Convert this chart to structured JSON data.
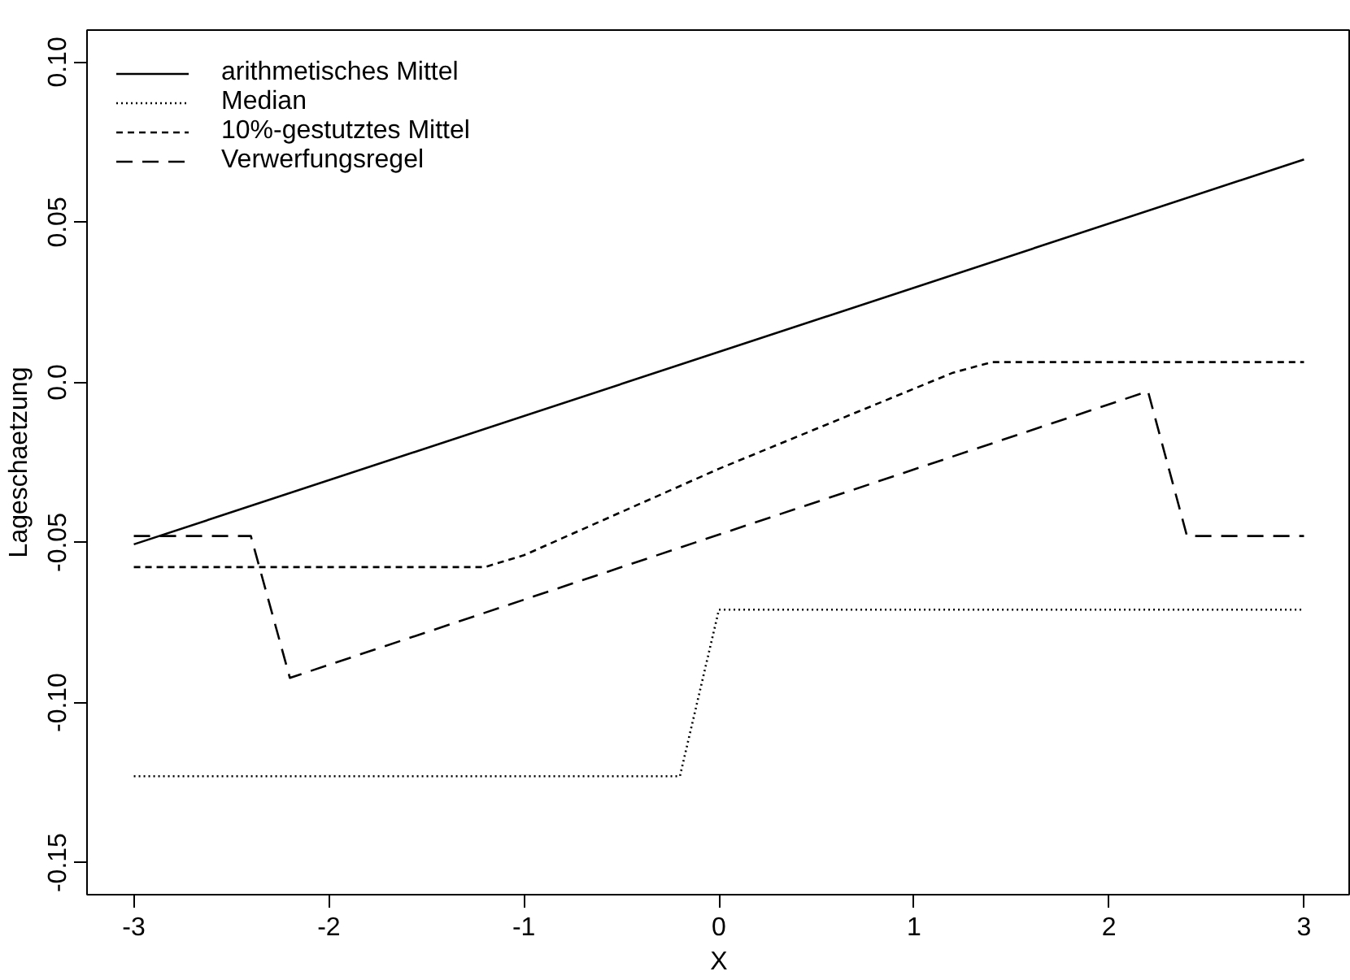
{
  "chart_data": {
    "type": "line",
    "xlabel": "X",
    "ylabel": "Lageschaetzung",
    "xlim": [
      -3.24,
      3.24
    ],
    "ylim": [
      -0.16,
      0.11
    ],
    "xticks": [
      -3,
      -2,
      -1,
      0,
      1,
      2,
      3
    ],
    "yticks": [
      {
        "value": -0.15,
        "label": "-0.15"
      },
      {
        "value": -0.1,
        "label": "-0.10"
      },
      -0.05,
      {
        "value": 0,
        "label": "0.0"
      },
      0.05,
      {
        "value": 0.1,
        "label": "0.10"
      }
    ],
    "grid": false,
    "legend": "top left",
    "marker": "none",
    "series": [
      {
        "name": "arithmetisches Mittel",
        "color": "#000000",
        "line_style": "solid",
        "x": [
          -3,
          0,
          3
        ],
        "values": [
          -0.0506,
          0.0095,
          0.0696
        ]
      },
      {
        "name": "Median",
        "color": "#000000",
        "line_style": "dotted",
        "x": [
          -3,
          -0.2,
          0,
          3
        ],
        "values": [
          -0.123,
          -0.123,
          -0.071,
          -0.071
        ]
      },
      {
        "name": "10%-gestutztes Mittel",
        "color": "#000000",
        "line_style": "dashed",
        "x": [
          -3,
          -1.2,
          -1,
          0,
          1.2,
          1.4,
          3
        ],
        "values": [
          -0.0577,
          -0.0577,
          -0.054,
          -0.027,
          0.003,
          0.0063,
          0.0063
        ]
      },
      {
        "name": "Verwerfungsregel",
        "color": "#000000",
        "line_style": "longdash",
        "x": [
          -3,
          -2.4,
          -2.2,
          2.2,
          2.4,
          3
        ],
        "values": [
          -0.048,
          -0.048,
          -0.0923,
          -0.0028,
          -0.048,
          -0.048
        ]
      }
    ]
  }
}
